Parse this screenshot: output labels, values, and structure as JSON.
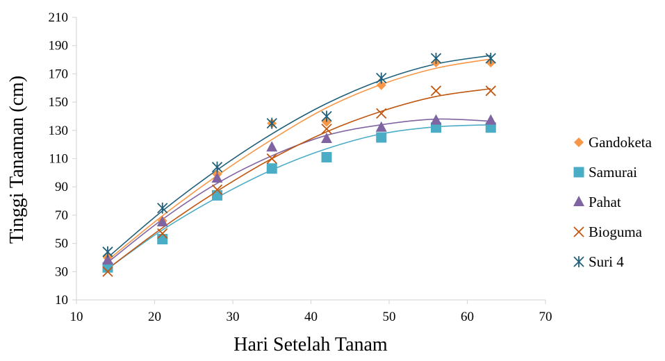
{
  "chart_data": {
    "type": "scatter",
    "title": "",
    "xlabel": "Hari Setelah Tanam",
    "ylabel": "Tinggi Tanaman (cm)",
    "xlim": [
      10,
      70
    ],
    "ylim": [
      10,
      210
    ],
    "xticks": [
      10,
      20,
      30,
      40,
      50,
      60,
      70
    ],
    "yticks": [
      10,
      30,
      50,
      70,
      90,
      110,
      130,
      150,
      170,
      190,
      210
    ],
    "grid": false,
    "legend": "right",
    "trendline": "polynomial",
    "x": [
      14,
      21,
      28,
      35,
      42,
      49,
      56,
      63
    ],
    "series": [
      {
        "name": "Gandoketa",
        "marker": "diamond",
        "color": "#F79646",
        "values": [
          40,
          66,
          99,
          135,
          136,
          162,
          178,
          178
        ],
        "trend": [
          38,
          69.5,
          98,
          123.5,
          146,
          162.5,
          174,
          180.5
        ]
      },
      {
        "name": "Samurai",
        "marker": "square",
        "color": "#4BACC6",
        "values": [
          33,
          53,
          84,
          103,
          111,
          125,
          132,
          132
        ],
        "trend": [
          32,
          59.5,
          82.5,
          102,
          117,
          127.5,
          132.5,
          134
        ]
      },
      {
        "name": "Pahat",
        "marker": "triangle",
        "color": "#8064A2",
        "values": [
          38,
          65,
          96,
          118,
          124,
          132,
          137,
          137
        ],
        "trend": [
          36.5,
          67,
          92.5,
          112,
          126.5,
          134,
          138,
          136.5
        ]
      },
      {
        "name": "Bioguma",
        "marker": "x",
        "color": "#C0560F",
        "values": [
          30,
          57,
          88,
          110,
          131,
          142,
          158,
          158
        ],
        "trend": [
          32,
          61,
          87,
          110,
          129,
          143.5,
          154,
          159.5
        ]
      },
      {
        "name": "Suri 4",
        "marker": "star",
        "color": "#1F5F7A",
        "values": [
          44,
          75,
          104,
          135,
          140,
          167,
          181,
          181
        ],
        "trend": [
          40,
          73,
          102,
          127.5,
          149,
          165.5,
          177,
          183
        ]
      }
    ]
  }
}
